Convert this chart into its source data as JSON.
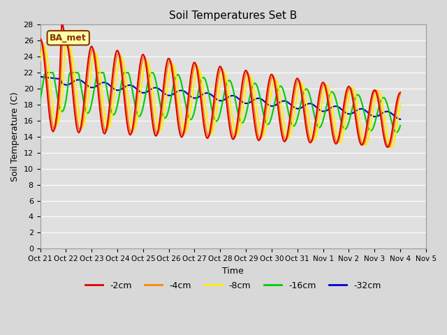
{
  "title": "Soil Temperatures Set B",
  "xlabel": "Time",
  "ylabel": "Soil Temperature (C)",
  "ylim": [
    0,
    28
  ],
  "yticks": [
    0,
    2,
    4,
    6,
    8,
    10,
    12,
    14,
    16,
    18,
    20,
    22,
    24,
    26,
    28
  ],
  "xtick_labels": [
    "Oct 21",
    "Oct 22",
    "Oct 23",
    "Oct 24",
    "Oct 25",
    "Oct 26",
    "Oct 27",
    "Oct 28",
    "Oct 29",
    "Oct 30",
    "Oct 31",
    "Nov 1",
    "Nov 2",
    "Nov 3",
    "Nov 4",
    "Nov 5"
  ],
  "series_colors": [
    "#dd0000",
    "#ff8800",
    "#ffee00",
    "#00cc00",
    "#0000cc"
  ],
  "series_labels": [
    "-2cm",
    "-4cm",
    "-8cm",
    "-16cm",
    "-32cm"
  ],
  "legend_label": "BA_met",
  "legend_bg": "#ffffaa",
  "legend_border": "#883300",
  "bg_color": "#d8d8d8",
  "plot_bg": "#e0e0e0",
  "grid_color": "#ffffff",
  "n_points": 336
}
